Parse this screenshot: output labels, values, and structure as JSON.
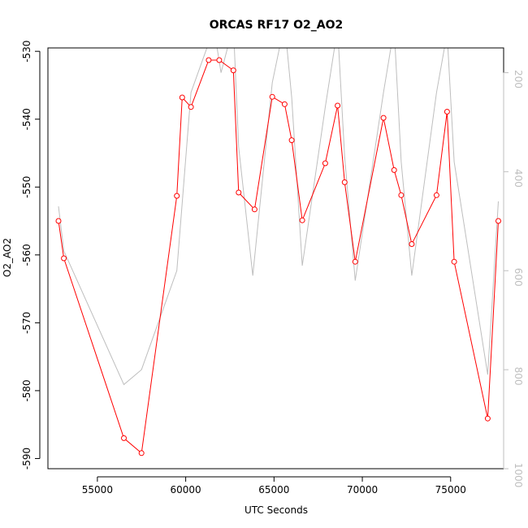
{
  "chart_data": {
    "type": "line",
    "title": "ORCAS RF17 O2_AO2",
    "xlabel": "UTC Seconds",
    "ylabel": "O2_AO2",
    "xlim": [
      52200,
      78000
    ],
    "ylim": [
      -591.5,
      -529.5
    ],
    "y2lim": [
      1000,
      150
    ],
    "x_ticks": [
      55000,
      60000,
      65000,
      70000,
      75000
    ],
    "x_tick_labels": [
      "55000",
      "60000",
      "65000",
      "70000",
      "75000"
    ],
    "y_ticks": [
      -590,
      -580,
      -570,
      -560,
      -550,
      -540,
      -530
    ],
    "y_tick_labels": [
      "-590",
      "-580",
      "-570",
      "-560",
      "-550",
      "-540",
      "-530"
    ],
    "y2_ticks": [
      200,
      400,
      600,
      800,
      1000
    ],
    "y2_tick_labels": [
      "200",
      "400",
      "600",
      "800",
      "1000"
    ],
    "grid": false,
    "series": [
      {
        "color": "#ff0000",
        "axis": "left",
        "marker": "open-circle",
        "x": [
          52800,
          53100,
          56500,
          57500,
          59500,
          59800,
          60300,
          61300,
          61900,
          62700,
          63000,
          63900,
          64900,
          65600,
          66000,
          66600,
          67900,
          68600,
          69000,
          69600,
          71200,
          71800,
          72200,
          72800,
          74200,
          74800,
          75200,
          77100,
          77700
        ],
        "y": [
          -555,
          -560.5,
          -587,
          -589.2,
          -551.3,
          -536.8,
          -538.2,
          -531.3,
          -531.3,
          -532.8,
          -550.8,
          -553.3,
          -536.7,
          -537.8,
          -543.1,
          -554.9,
          -546.5,
          -538,
          -549.3,
          -561,
          -539.8,
          -547.5,
          -551.2,
          -558.4,
          -551.2,
          -538.9,
          -561,
          -584.1,
          -555
        ]
      },
      {
        "color": "#bebebe",
        "axis": "right",
        "marker": "none",
        "x": [
          52800,
          53100,
          56500,
          57500,
          59500,
          60300,
          61300,
          61600,
          62000,
          62700,
          63000,
          63800,
          64900,
          65600,
          66000,
          66600,
          67900,
          68600,
          69000,
          69600,
          71200,
          71800,
          72200,
          72800,
          74200,
          74800,
          75200,
          77100,
          77700
        ],
        "y": [
          470,
          560,
          830,
          800,
          600,
          240,
          140,
          110,
          200,
          105,
          350,
          610,
          220,
          100,
          250,
          590,
          270,
          110,
          370,
          620,
          240,
          110,
          380,
          610,
          240,
          120,
          380,
          810,
          460
        ]
      }
    ]
  }
}
